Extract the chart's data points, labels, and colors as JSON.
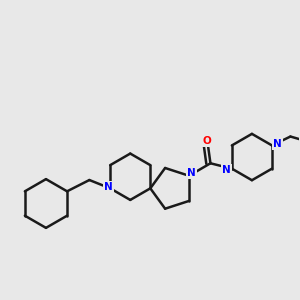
{
  "bg_color": "#e8e8e8",
  "bond_color": "#1a1a1a",
  "N_color": "#0000ff",
  "O_color": "#ff0000",
  "line_width": 1.8,
  "figsize": [
    3.0,
    3.0
  ],
  "dpi": 100,
  "xlim": [
    0,
    10
  ],
  "ylim": [
    0,
    10
  ]
}
